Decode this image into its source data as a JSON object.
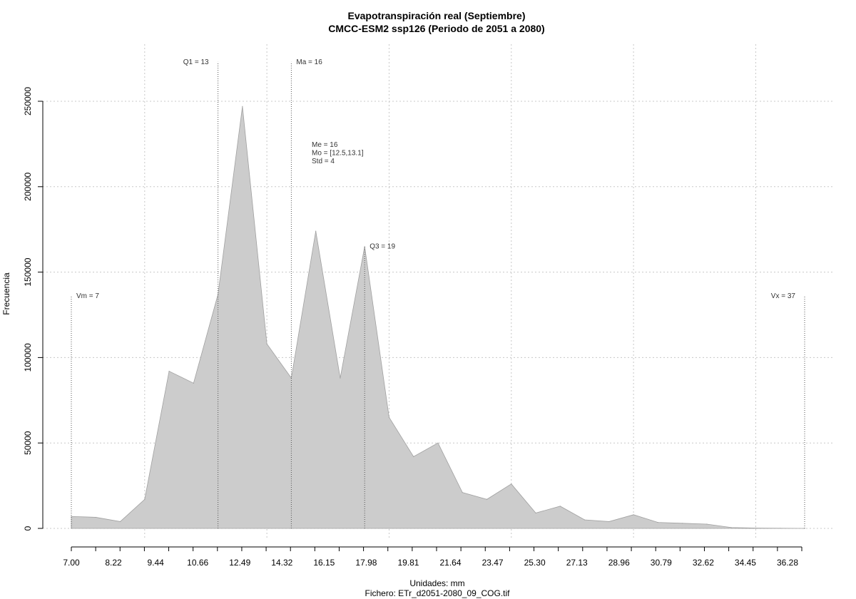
{
  "chart_data": {
    "type": "area",
    "title": "Evapotranspiración real (Septiembre)",
    "subtitle": "CMCC-ESM2 ssp126 (Periodo de 2051 a 2080)",
    "xlabel": "Unidades: mm",
    "file_label": "Fichero: ETr_d2051-2080_09_COG.tif",
    "ylabel": "Frecuencia",
    "xlim": [
      7.0,
      37.0
    ],
    "ylim": [
      0,
      250000
    ],
    "grid": true,
    "x_tick_labels": [
      "7.00",
      "8.22",
      "9.44",
      "10.66",
      "12.49",
      "14.32",
      "16.15",
      "17.98",
      "19.81",
      "21.64",
      "23.47",
      "25.30",
      "27.13",
      "28.96",
      "30.79",
      "32.62",
      "34.45",
      "36.28"
    ],
    "y_tick_labels": [
      "0",
      "50000",
      "100000",
      "150000",
      "200000",
      "250000"
    ],
    "x": [
      7.0,
      8.0,
      9.0,
      10.0,
      11.0,
      12.0,
      13.0,
      14.0,
      15.0,
      16.0,
      17.0,
      18.0,
      19.0,
      20.0,
      21.0,
      22.0,
      23.0,
      24.0,
      25.0,
      26.0,
      27.0,
      28.0,
      29.0,
      30.0,
      31.0,
      32.0,
      33.0,
      34.0,
      35.0,
      36.0,
      37.0
    ],
    "values": [
      7000,
      6500,
      4000,
      17000,
      92000,
      85000,
      137000,
      247000,
      108000,
      88000,
      174000,
      88000,
      165000,
      65000,
      42000,
      50000,
      21000,
      17000,
      26000,
      9000,
      13000,
      5000,
      4000,
      8000,
      3500,
      3000,
      2500,
      500,
      200,
      100,
      0
    ],
    "reference_lines": [
      {
        "label": "Vm = 7",
        "x": 7.0,
        "y": 136000
      },
      {
        "label": "Q1 = 13",
        "x": 13.0,
        "y": 273000
      },
      {
        "label": "Ma = 16",
        "x": 16.0,
        "y": 273000
      },
      {
        "label": "Q3 = 19",
        "x": 19.0,
        "y": 165000
      },
      {
        "label": "Vx = 37",
        "x": 37.0,
        "y": 136000
      }
    ],
    "stats": [
      "Me = 16",
      "Mo = [12.5,13.1]",
      "Std = 4"
    ],
    "colors": {
      "fill": "#cccccc",
      "line": "#a0a0a0",
      "grid": "#c8c8c8",
      "ref": "#555555"
    }
  }
}
